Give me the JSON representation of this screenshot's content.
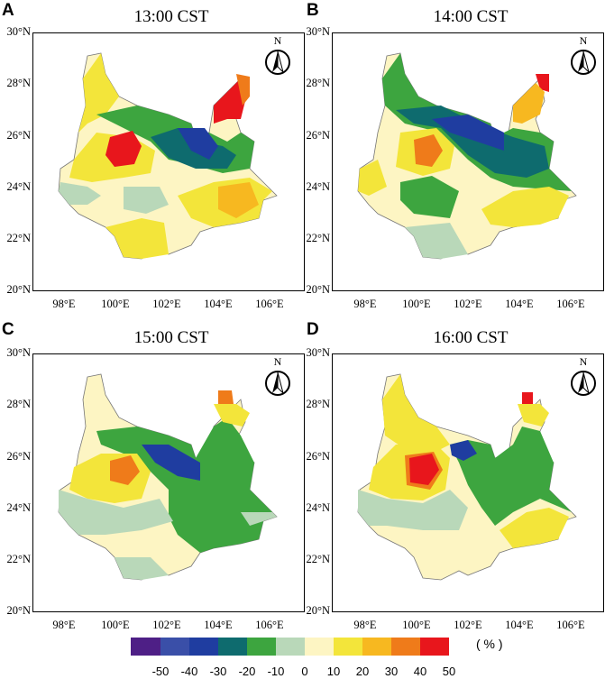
{
  "legend": {
    "labels": [
      "-50",
      "-40",
      "-30",
      "-20",
      "-10",
      "0",
      "10",
      "20",
      "30",
      "40",
      "50"
    ],
    "colors": [
      "#4e1f86",
      "#3a4fa8",
      "#1f3da0",
      "#0e6b6e",
      "#3da53f",
      "#b9d8b9",
      "#fdf5c3",
      "#f3e53a",
      "#f7b820",
      "#ef7b1a",
      "#e8161c"
    ],
    "unit": "( % )"
  },
  "panels": [
    {
      "letter": "A",
      "title": "13:00 CST"
    },
    {
      "letter": "B",
      "title": "14:00 CST"
    },
    {
      "letter": "C",
      "title": "15:00 CST"
    },
    {
      "letter": "D",
      "title": "16:00 CST"
    }
  ],
  "axes": {
    "lat_labels": [
      "30°N",
      "28°N",
      "26°N",
      "24°N",
      "22°N",
      "20°N"
    ],
    "lon_labels": [
      "98°E",
      "100°E",
      "102°E",
      "104°E",
      "106°E"
    ]
  },
  "north_label": "N"
}
